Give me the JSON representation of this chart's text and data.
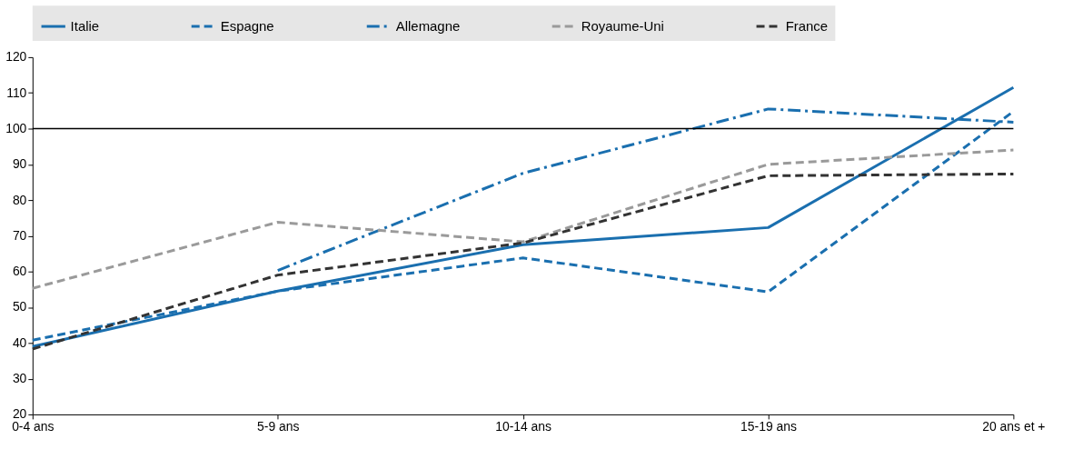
{
  "chart_data": {
    "type": "line",
    "categories": [
      "0-4 ans",
      "5-9 ans",
      "10-14 ans",
      "15-19 ans",
      "20 ans et +"
    ],
    "series": [
      {
        "name": "Italie",
        "color": "#1a6faf",
        "line_style": "solid",
        "values": [
          39,
          54.5,
          67.5,
          72.3,
          111.5
        ]
      },
      {
        "name": "Espagne",
        "color": "#1a6faf",
        "line_style": "dashed",
        "values": [
          40.8,
          54.5,
          63.8,
          54.3,
          104.8
        ]
      },
      {
        "name": "Allemagne",
        "color": "#1a6faf",
        "line_style": "dashdot",
        "values": [
          null,
          60.3,
          87.5,
          105.5,
          101.8
        ]
      },
      {
        "name": "Royaume-Uni",
        "color": "#9a9a9a",
        "line_style": "dashed",
        "values": [
          55.3,
          73.8,
          68.3,
          90,
          94
        ]
      },
      {
        "name": "France",
        "color": "#333333",
        "line_style": "dashed",
        "values": [
          38.3,
          59,
          68,
          86.8,
          87.3
        ]
      }
    ],
    "ylim": [
      20,
      120
    ],
    "yticks": [
      20,
      30,
      40,
      50,
      60,
      70,
      80,
      90,
      100,
      110,
      120
    ],
    "ref_lines": [
      {
        "axis": "y",
        "value": 100,
        "color": "#000000"
      }
    ],
    "grid": false,
    "legend": "top",
    "marker": "none"
  }
}
